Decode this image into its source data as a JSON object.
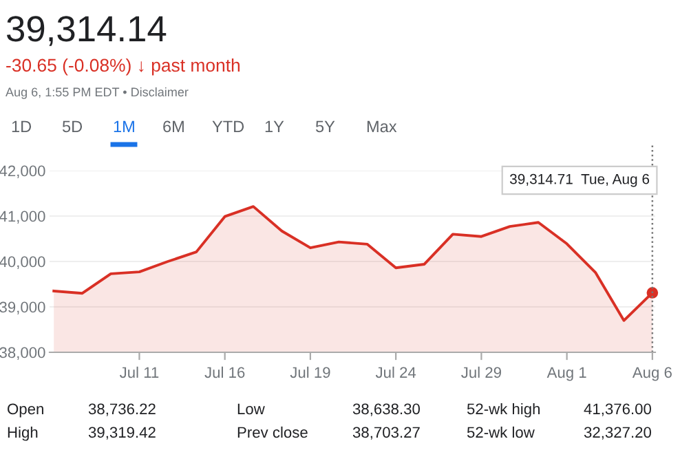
{
  "chart_data": {
    "type": "area",
    "title": "39,314.14",
    "subtitle": "-30.65 (-0.08%) ↓ past month",
    "categories": [
      null,
      null,
      null,
      "Jul 11",
      null,
      null,
      "Jul 16",
      null,
      null,
      "Jul 19",
      null,
      null,
      "Jul 24",
      null,
      null,
      "Jul 29",
      null,
      null,
      "Aug 1",
      null,
      null,
      "Aug 6"
    ],
    "series": [
      {
        "color": "#d93025",
        "values": [
          39350,
          39300,
          39730,
          39770,
          40000,
          40210,
          40990,
          41210,
          40670,
          40300,
          40430,
          40380,
          39860,
          39940,
          40600,
          40550,
          40770,
          40860,
          40390,
          39760,
          38700,
          39310
        ]
      }
    ],
    "ylim": [
      38000,
      42000
    ],
    "yticks": [
      {
        "value": 38000,
        "label": "38,000"
      },
      {
        "value": 39000,
        "label": "39,000"
      },
      {
        "value": 40000,
        "label": "40,000"
      },
      {
        "value": 41000,
        "label": "41,000"
      },
      {
        "value": 42000,
        "label": "42,000"
      }
    ],
    "grid": "y",
    "ref_lines": [
      {
        "axis": "x",
        "value": "Aug 6",
        "line_style": "dotted",
        "color": "#777777"
      }
    ],
    "annotations": [
      "Aug 6, 1:55 PM EDT • Disclaimer",
      "1D",
      "5D",
      "1M",
      "6M",
      "YTD",
      "1Y",
      "5Y",
      "Max",
      "39,314.71  Tue, Aug 6",
      "Open",
      "38,736.22",
      "Low",
      "38,638.30",
      "52-wk high",
      "41,376.00",
      "High",
      "39,319.42",
      "Prev close",
      "38,703.27",
      "52-wk low",
      "32,327.20"
    ]
  }
}
